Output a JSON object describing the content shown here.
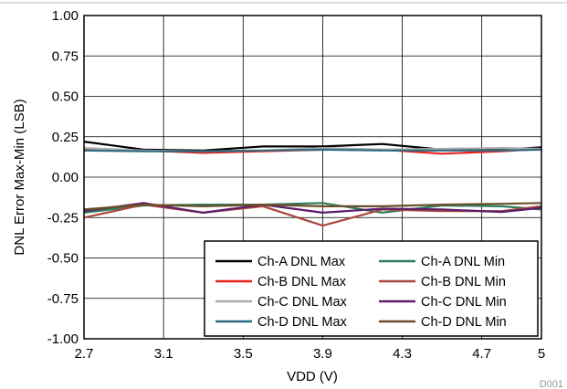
{
  "chart_data": {
    "type": "line",
    "xlabel": "VDD (V)",
    "ylabel": "DNL Error Max-Min (LSB)",
    "footnote": "D001",
    "xlim": [
      2.7,
      5
    ],
    "ylim": [
      -1.0,
      1.0
    ],
    "x_ticks": [
      2.7,
      3.1,
      3.5,
      3.9,
      4.3,
      4.7,
      5
    ],
    "x_tick_labels": [
      "2.7",
      "3.1",
      "3.5",
      "3.9",
      "4.3",
      "4.7",
      "5"
    ],
    "y_ticks": [
      -1.0,
      -0.75,
      -0.5,
      -0.25,
      0.0,
      0.25,
      0.5,
      0.75,
      1.0
    ],
    "y_tick_labels": [
      "-1.00",
      "-0.75",
      "-0.50",
      "-0.25",
      "0.00",
      "0.25",
      "0.50",
      "0.75",
      "1.00"
    ],
    "grid": true,
    "legend_position": "bottom-right",
    "x": [
      2.7,
      3.0,
      3.3,
      3.6,
      3.9,
      4.2,
      4.5,
      4.8,
      5.0
    ],
    "series": [
      {
        "name": "Ch-A DNL Max",
        "color": "#000000",
        "values": [
          0.22,
          0.17,
          0.165,
          0.19,
          0.19,
          0.205,
          0.17,
          0.17,
          0.185
        ]
      },
      {
        "name": "Ch-B DNL Max",
        "color": "#e8201c",
        "values": [
          0.17,
          0.165,
          0.15,
          0.16,
          0.17,
          0.17,
          0.145,
          0.16,
          0.175
        ]
      },
      {
        "name": "Ch-C DNL Max",
        "color": "#aaaaaa",
        "values": [
          0.18,
          0.165,
          0.16,
          0.165,
          0.18,
          0.17,
          0.175,
          0.18,
          0.175
        ]
      },
      {
        "name": "Ch-D DNL Max",
        "color": "#2e6b80",
        "values": [
          0.165,
          0.16,
          0.16,
          0.165,
          0.17,
          0.165,
          0.165,
          0.165,
          0.17
        ]
      },
      {
        "name": "Ch-A DNL Min",
        "color": "#2e7d5b",
        "values": [
          -0.22,
          -0.175,
          -0.17,
          -0.17,
          -0.16,
          -0.22,
          -0.175,
          -0.18,
          -0.2
        ]
      },
      {
        "name": "Ch-B DNL Min",
        "color": "#a9473d",
        "values": [
          -0.25,
          -0.17,
          -0.22,
          -0.18,
          -0.3,
          -0.2,
          -0.21,
          -0.21,
          -0.18
        ]
      },
      {
        "name": "Ch-C DNL Min",
        "color": "#5c1e6b",
        "values": [
          -0.21,
          -0.16,
          -0.22,
          -0.17,
          -0.22,
          -0.195,
          -0.2,
          -0.215,
          -0.19
        ]
      },
      {
        "name": "Ch-D DNL Min",
        "color": "#6b4e2a",
        "values": [
          -0.2,
          -0.17,
          -0.18,
          -0.17,
          -0.18,
          -0.18,
          -0.17,
          -0.165,
          -0.16
        ]
      }
    ]
  }
}
